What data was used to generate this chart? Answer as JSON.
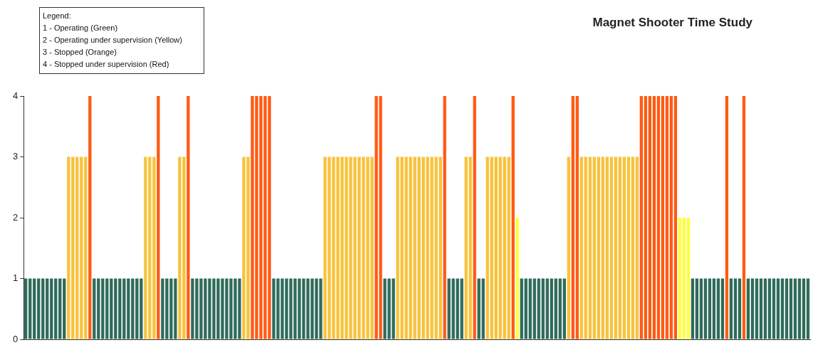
{
  "chart_data": {
    "type": "bar",
    "title": "Magnet Shooter Time Study",
    "annotations": [
      "Legend:",
      "1 - Operating (Green)",
      "2 - Operating under supervision (Yellow)",
      "3 - Stopped (Orange)",
      "4 - Stopped under supervision (Red)"
    ],
    "categories": [
      null,
      null,
      null,
      null,
      null,
      null,
      null,
      null,
      null,
      null,
      null,
      null,
      null,
      null,
      null,
      null,
      null,
      null,
      null,
      null,
      null,
      null,
      null,
      null,
      null,
      null,
      null,
      null,
      null,
      null,
      null,
      null,
      null,
      null,
      null,
      null,
      null,
      null,
      null,
      null,
      null,
      null,
      null,
      null,
      null,
      null,
      null,
      null,
      null,
      null,
      null,
      null,
      null,
      null,
      null,
      null,
      null,
      null,
      null,
      null,
      null,
      null,
      null,
      null,
      null,
      null,
      null,
      null,
      null,
      null,
      null,
      null,
      null,
      null,
      null,
      null,
      null,
      null,
      null,
      null,
      null,
      null,
      null,
      null,
      null,
      null,
      null,
      null,
      null,
      null,
      null,
      null,
      null,
      null,
      null,
      null,
      null,
      null,
      null,
      null,
      null,
      null,
      null,
      null,
      null,
      null,
      null,
      null,
      null,
      null,
      null,
      null,
      null,
      null,
      null,
      null,
      null,
      null,
      null,
      null,
      null,
      null,
      null,
      null,
      null,
      null,
      null,
      null,
      null,
      null,
      null,
      null,
      null,
      null,
      null,
      null,
      null,
      null,
      null,
      null,
      null,
      null,
      null,
      null,
      null,
      null,
      null,
      null,
      null,
      null,
      null,
      null,
      null,
      null,
      null,
      null,
      null,
      null,
      null,
      null,
      null,
      null,
      null,
      null,
      null,
      null,
      null,
      null,
      null,
      null,
      null,
      null,
      null,
      null,
      null,
      null,
      null,
      null,
      null,
      null,
      null,
      null,
      null,
      null
    ],
    "values": [
      1,
      1,
      1,
      1,
      1,
      1,
      1,
      1,
      1,
      1,
      3,
      3,
      3,
      3,
      3,
      4,
      1,
      1,
      1,
      1,
      1,
      1,
      1,
      1,
      1,
      1,
      1,
      1,
      3,
      3,
      3,
      4,
      1,
      1,
      1,
      1,
      3,
      3,
      4,
      1,
      1,
      1,
      1,
      1,
      1,
      1,
      1,
      1,
      1,
      1,
      1,
      3,
      3,
      4,
      4,
      4,
      4,
      4,
      1,
      1,
      1,
      1,
      1,
      1,
      1,
      1,
      1,
      1,
      1,
      1,
      3,
      3,
      3,
      3,
      3,
      3,
      3,
      3,
      3,
      3,
      3,
      3,
      4,
      4,
      1,
      1,
      1,
      3,
      3,
      3,
      3,
      3,
      3,
      3,
      3,
      3,
      3,
      3,
      4,
      1,
      1,
      1,
      1,
      3,
      3,
      4,
      1,
      1,
      3,
      3,
      3,
      3,
      3,
      3,
      4,
      2,
      1,
      1,
      1,
      1,
      1,
      1,
      1,
      1,
      1,
      1,
      1,
      3,
      4,
      4,
      3,
      3,
      3,
      3,
      3,
      3,
      3,
      3,
      3,
      3,
      3,
      3,
      3,
      3,
      4,
      4,
      4,
      4,
      4,
      4,
      4,
      4,
      4,
      2,
      2,
      2,
      1,
      1,
      1,
      1,
      1,
      1,
      1,
      1,
      4,
      1,
      1,
      1,
      4,
      1,
      1,
      1,
      1,
      1,
      1,
      1,
      1,
      1,
      1,
      1,
      1,
      1,
      1,
      1
    ],
    "colors": [
      "#2f6b5a",
      "#2f6b5a",
      "#2f6b5a",
      "#2f6b5a",
      "#2f6b5a",
      "#2f6b5a",
      "#2f6b5a",
      "#2f6b5a",
      "#2f6b5a",
      "#2f6b5a",
      "#f8c23a",
      "#f8c23a",
      "#f8c23a",
      "#f8c23a",
      "#f8c23a",
      "#ff5a14",
      "#2f6b5a",
      "#2f6b5a",
      "#2f6b5a",
      "#2f6b5a",
      "#2f6b5a",
      "#2f6b5a",
      "#2f6b5a",
      "#2f6b5a",
      "#2f6b5a",
      "#2f6b5a",
      "#2f6b5a",
      "#2f6b5a",
      "#f8c23a",
      "#f8c23a",
      "#f8c23a",
      "#ff5a14",
      "#2f6b5a",
      "#2f6b5a",
      "#2f6b5a",
      "#2f6b5a",
      "#f8c23a",
      "#f8c23a",
      "#ff5a14",
      "#2f6b5a",
      "#2f6b5a",
      "#2f6b5a",
      "#2f6b5a",
      "#2f6b5a",
      "#2f6b5a",
      "#2f6b5a",
      "#2f6b5a",
      "#2f6b5a",
      "#2f6b5a",
      "#2f6b5a",
      "#2f6b5a",
      "#f8c23a",
      "#f8c23a",
      "#ff5a14",
      "#ff5a14",
      "#ff5a14",
      "#ff5a14",
      "#ff5a14",
      "#2f6b5a",
      "#2f6b5a",
      "#2f6b5a",
      "#2f6b5a",
      "#2f6b5a",
      "#2f6b5a",
      "#2f6b5a",
      "#2f6b5a",
      "#2f6b5a",
      "#2f6b5a",
      "#2f6b5a",
      "#2f6b5a",
      "#f8c23a",
      "#f8c23a",
      "#f8c23a",
      "#f8c23a",
      "#f8c23a",
      "#f8c23a",
      "#f8c23a",
      "#f8c23a",
      "#f8c23a",
      "#f8c23a",
      "#f8c23a",
      "#f8c23a",
      "#ff5a14",
      "#ff5a14",
      "#2f6b5a",
      "#2f6b5a",
      "#2f6b5a",
      "#f8c23a",
      "#f8c23a",
      "#f8c23a",
      "#f8c23a",
      "#f8c23a",
      "#f8c23a",
      "#f8c23a",
      "#f8c23a",
      "#f8c23a",
      "#f8c23a",
      "#f8c23a",
      "#ff5a14",
      "#2f6b5a",
      "#2f6b5a",
      "#2f6b5a",
      "#2f6b5a",
      "#f8c23a",
      "#f8c23a",
      "#ff5a14",
      "#2f6b5a",
      "#2f6b5a",
      "#f8c23a",
      "#f8c23a",
      "#f8c23a",
      "#f8c23a",
      "#f8c23a",
      "#f8c23a",
      "#ff5a14",
      "#ffff3c",
      "#2f6b5a",
      "#2f6b5a",
      "#2f6b5a",
      "#2f6b5a",
      "#2f6b5a",
      "#2f6b5a",
      "#2f6b5a",
      "#2f6b5a",
      "#2f6b5a",
      "#2f6b5a",
      "#2f6b5a",
      "#f8c23a",
      "#ff5a14",
      "#ff5a14",
      "#f8c23a",
      "#f8c23a",
      "#f8c23a",
      "#f8c23a",
      "#f8c23a",
      "#f8c23a",
      "#f8c23a",
      "#f8c23a",
      "#f8c23a",
      "#f8c23a",
      "#f8c23a",
      "#f8c23a",
      "#f8c23a",
      "#f8c23a",
      "#ff5a14",
      "#ff5a14",
      "#ff5a14",
      "#ff5a14",
      "#ff5a14",
      "#ff5a14",
      "#ff5a14",
      "#ff5a14",
      "#ff5a14",
      "#ffff3c",
      "#ffff3c",
      "#ffff3c",
      "#2f6b5a",
      "#2f6b5a",
      "#2f6b5a",
      "#2f6b5a",
      "#2f6b5a",
      "#2f6b5a",
      "#2f6b5a",
      "#2f6b5a",
      "#ff5a14",
      "#2f6b5a",
      "#2f6b5a",
      "#2f6b5a",
      "#ff5a14",
      "#2f6b5a",
      "#2f6b5a",
      "#2f6b5a",
      "#2f6b5a",
      "#2f6b5a",
      "#2f6b5a",
      "#2f6b5a",
      "#2f6b5a",
      "#2f6b5a",
      "#2f6b5a",
      "#2f6b5a",
      "#2f6b5a",
      "#2f6b5a",
      "#2f6b5a",
      "#2f6b5a"
    ],
    "ylim": [
      0,
      4
    ],
    "yticks": [
      0,
      1,
      2,
      3,
      4
    ],
    "grid": false,
    "tick_labels": "y"
  }
}
